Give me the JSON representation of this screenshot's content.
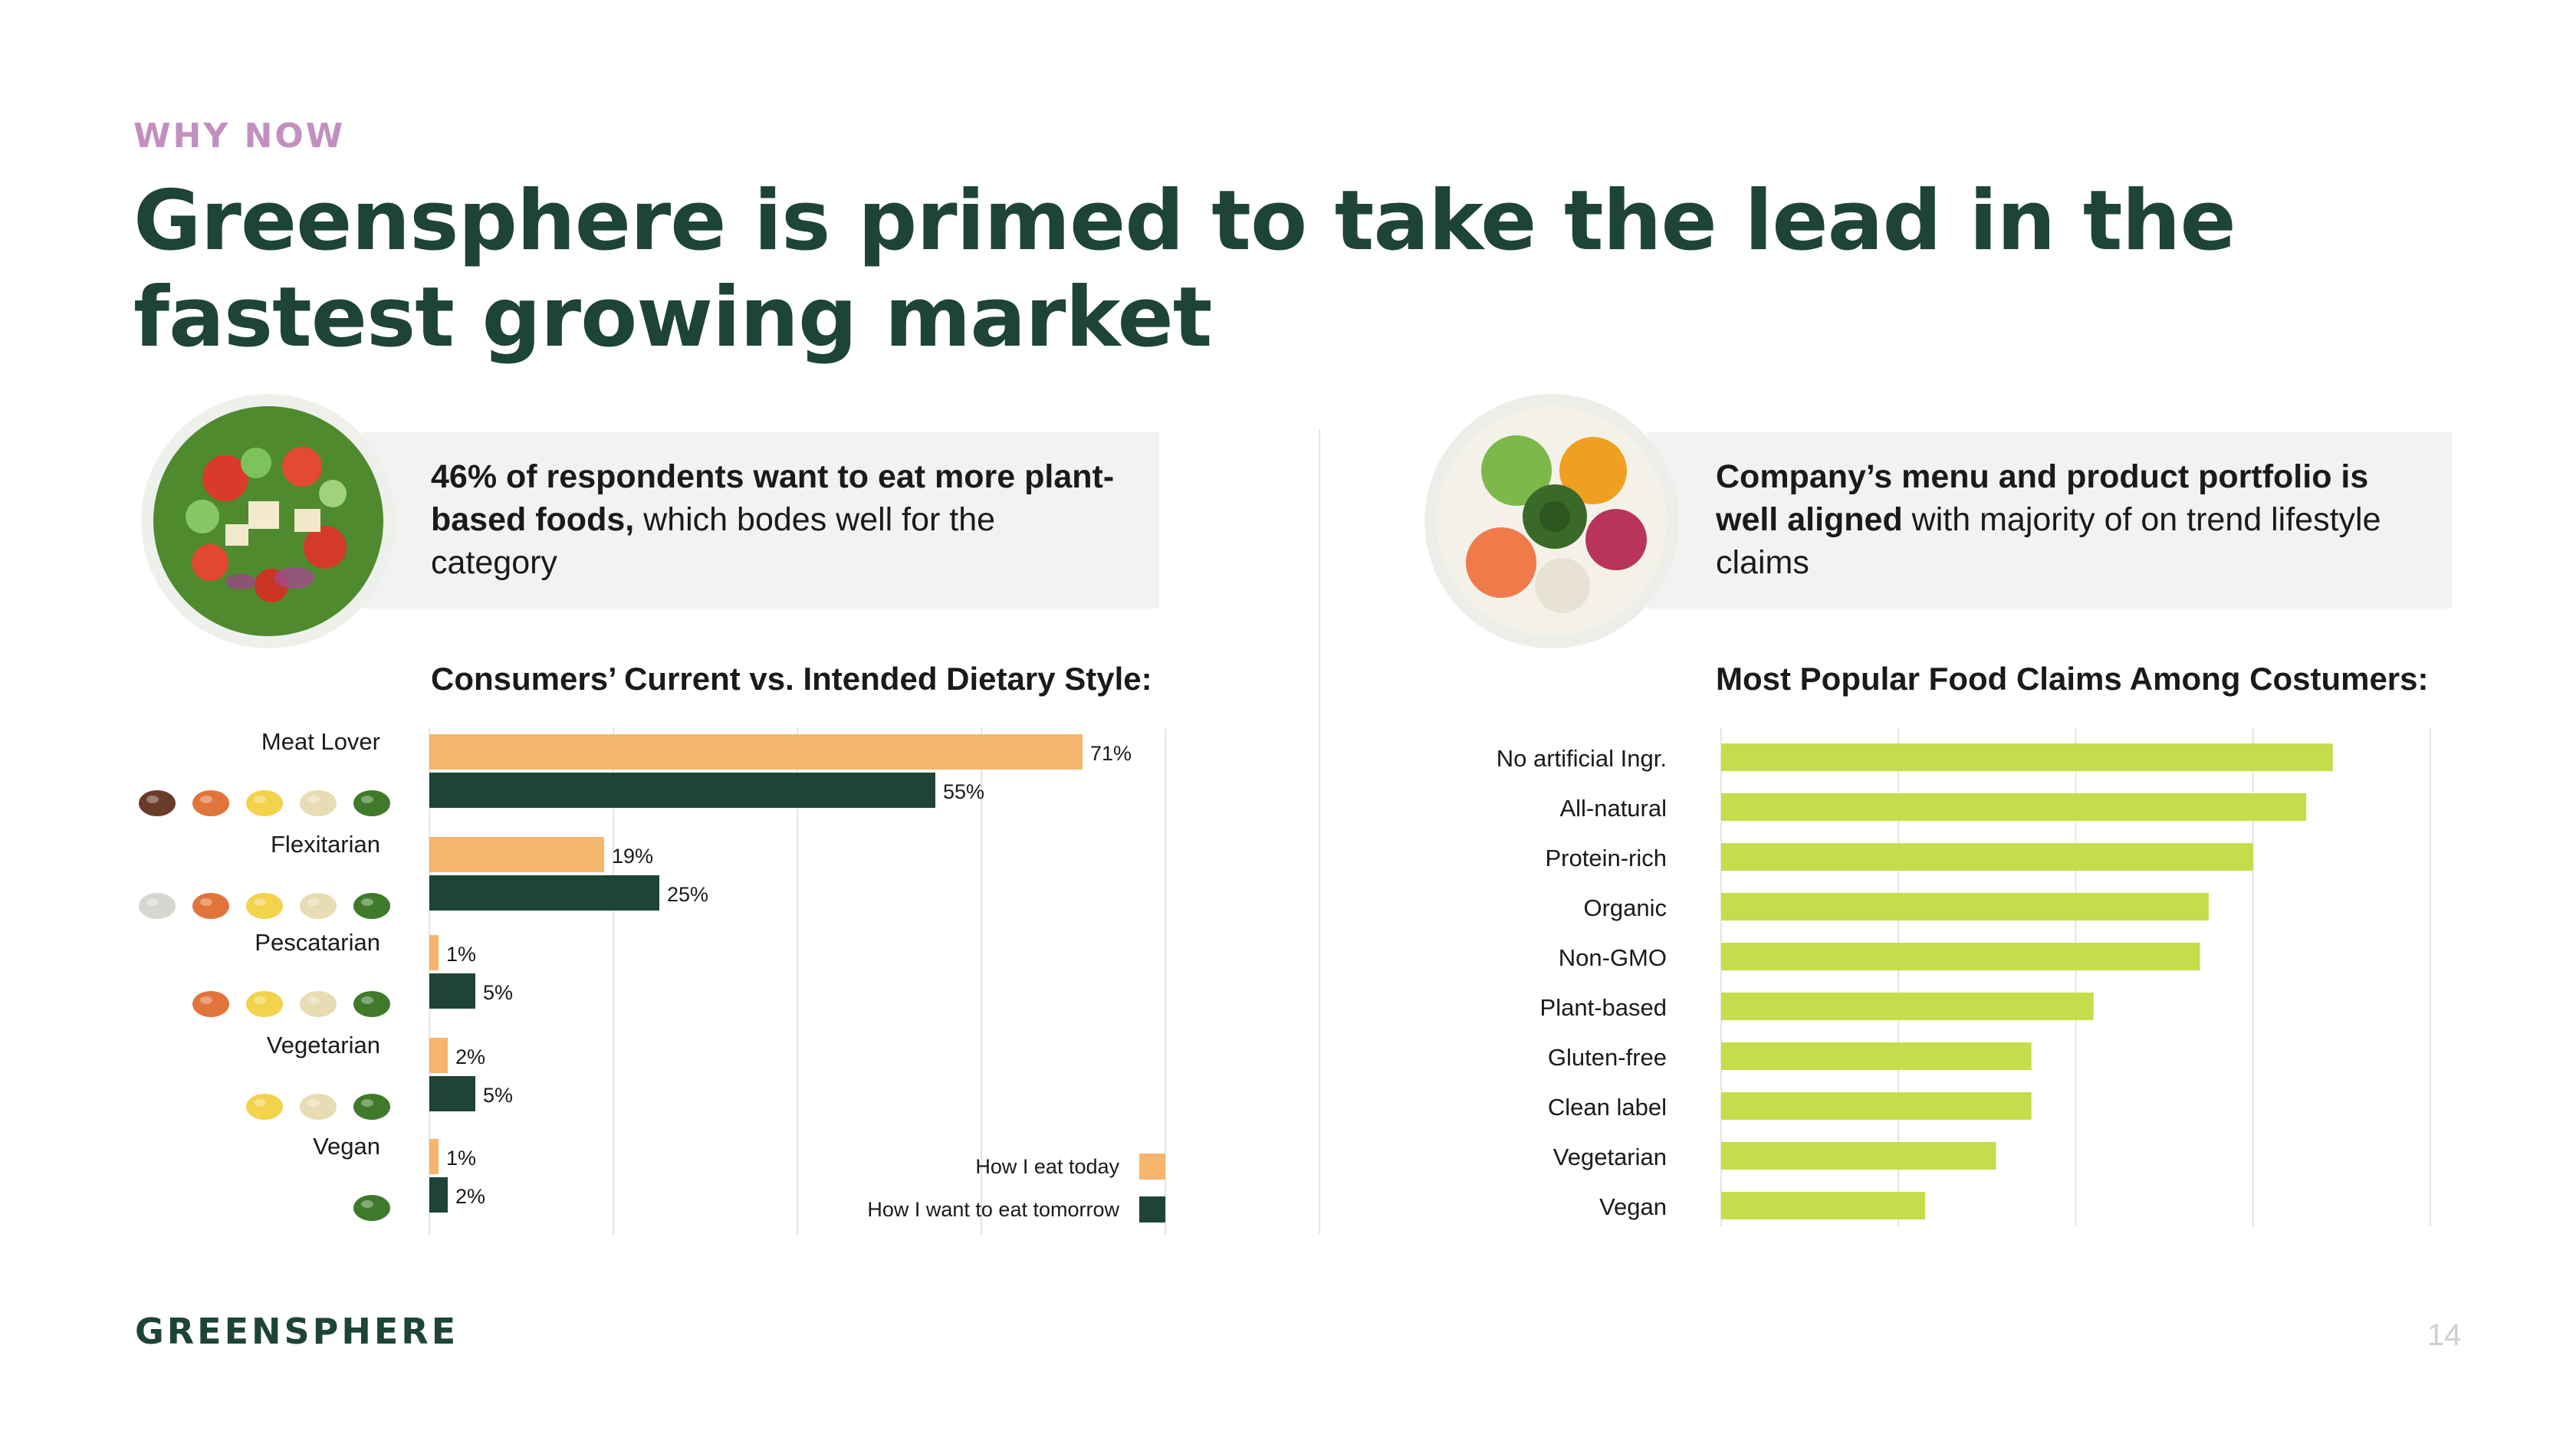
{
  "eyebrow": "WHY NOW",
  "headline": "Greensphere is primed to take the lead in the fastest growing market",
  "left_panel": {
    "text_bold": "46% of respondents want to eat more plant-based foods,",
    "text_rest": " which bodes well for the category",
    "chart_title": "Consumers’ Current vs. Intended Dietary Style:"
  },
  "right_panel": {
    "text_bold": "Company’s menu and product portfolio is well aligned",
    "text_rest": " with majority of on trend lifestyle claims",
    "chart_title": "Most Popular Food Claims Among Costumers:"
  },
  "brand": "GREENSPHERE",
  "page_number": "14",
  "colors": {
    "headline": "#1e4435",
    "eyebrow": "#c28fc0",
    "today": "#f6b56c",
    "tomorrow": "#1e4435",
    "claims_bar": "#c5dd4a"
  },
  "chart_data": [
    {
      "type": "bar",
      "orientation": "horizontal",
      "title": "Consumers’ Current vs. Intended Dietary Style:",
      "categories": [
        "Meat Lover",
        "Flexitarian",
        "Pescatarian",
        "Vegetarian",
        "Vegan"
      ],
      "category_icons": [
        [
          "steak-icon",
          "shrimp-icon",
          "egg-icon",
          "dairy-icon",
          "vegetable-icon"
        ],
        [
          "tofu-icon",
          "shrimp-icon",
          "egg-icon",
          "dairy-icon",
          "vegetable-icon"
        ],
        [
          "shrimp-icon",
          "egg-icon",
          "dairy-icon",
          "vegetable-icon"
        ],
        [
          "egg-icon",
          "dairy-icon",
          "vegetable-icon"
        ],
        [
          "vegetable-icon"
        ]
      ],
      "series": [
        {
          "name": "How I eat today",
          "values": [
            71,
            19,
            1,
            2,
            1
          ],
          "labels": [
            "71%",
            "19%",
            "1%",
            "2%",
            "1%"
          ]
        },
        {
          "name": "How I want to eat tomorrow",
          "values": [
            55,
            25,
            5,
            5,
            2
          ],
          "labels": [
            "55%",
            "25%",
            "5%",
            "5%",
            "2%"
          ]
        }
      ],
      "xlim": [
        0,
        80
      ],
      "grid": true,
      "legend_position": "bottom-right"
    },
    {
      "type": "bar",
      "orientation": "horizontal",
      "title": "Most Popular Food Claims Among Costumers:",
      "categories": [
        "No artificial Ingr.",
        "All-natural",
        "Protein-rich",
        "Organic",
        "Non-GMO",
        "Plant-based",
        "Gluten-free",
        "Clean label",
        "Vegetarian",
        "Vegan"
      ],
      "values": [
        34.5,
        33,
        30,
        27.5,
        27,
        21,
        17.5,
        17.5,
        15.5,
        11.5
      ],
      "xlim": [
        0,
        40
      ],
      "grid": true
    }
  ]
}
